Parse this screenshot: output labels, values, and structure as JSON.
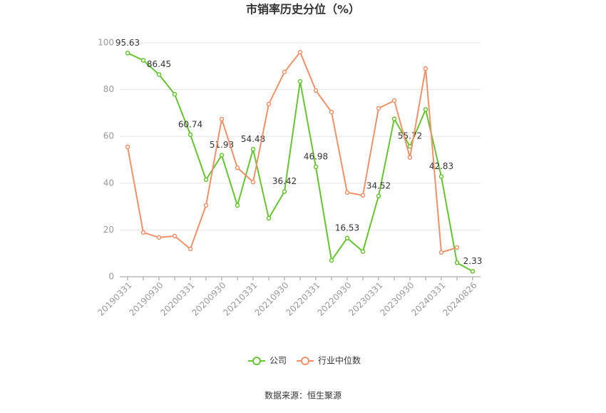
{
  "chart_data": {
    "type": "line",
    "title": "市销率历史分位（%）",
    "categories": [
      "20190331",
      null,
      "20190930",
      null,
      "20200331",
      null,
      "20200930",
      null,
      "20210331",
      null,
      "20210930",
      null,
      "20220331",
      null,
      "20220930",
      null,
      "20230331",
      null,
      "20230930",
      null,
      "20240331",
      null,
      "20240826"
    ],
    "series": [
      {
        "name": "公司",
        "color": "#66c431",
        "values": [
          95.63,
          92.5,
          86.45,
          78,
          60.74,
          41.5,
          51.93,
          30.5,
          54.48,
          25,
          36.42,
          83.5,
          46.98,
          7,
          16.53,
          10.8,
          34.52,
          67.5,
          55.72,
          71.5,
          42.83,
          6,
          2.33
        ],
        "value_labels": [
          "95.63",
          null,
          "86.45",
          null,
          "60.74",
          null,
          "51.93",
          null,
          "54.48",
          null,
          "36.42",
          null,
          "46.98",
          null,
          "16.53",
          null,
          "34.52",
          null,
          "55.72",
          null,
          "42.83",
          null,
          "2.33"
        ]
      },
      {
        "name": "行业中位数",
        "color": "#f0916a",
        "values": [
          55.5,
          18.9,
          16.8,
          17.4,
          11.9,
          30.5,
          67.4,
          46.6,
          40.5,
          73.8,
          87.5,
          96,
          79.6,
          70.4,
          36,
          34.8,
          72,
          75.3,
          51,
          89,
          10.4,
          12.5,
          null
        ]
      }
    ],
    "ylim": [
      0,
      100
    ],
    "yticks": [
      0,
      20,
      40,
      60,
      80,
      100
    ],
    "grid": true,
    "legend": "bottom",
    "source": "数据来源：恒生聚源"
  }
}
